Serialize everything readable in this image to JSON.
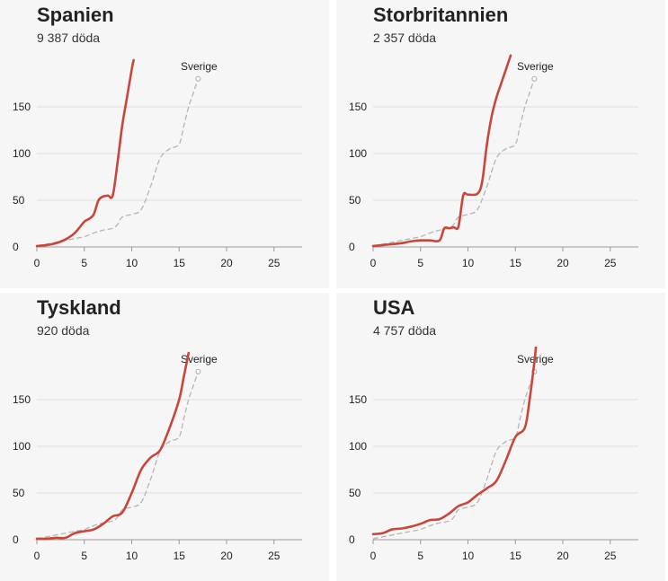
{
  "colors": {
    "main": "#c8473a",
    "reference": "#b5b5b5",
    "grid": "#dddddd",
    "axis": "#999999"
  },
  "panels": [
    {
      "title": "Spanien",
      "subtitle": "9 387 döda",
      "chart_data": {
        "type": "line",
        "xlim": [
          0,
          27
        ],
        "ylim": [
          0,
          200
        ],
        "xticks": [
          0,
          5,
          10,
          15,
          20,
          25
        ],
        "yticks": [
          0,
          50,
          100,
          150
        ],
        "reference_label": "Sverige",
        "series": [
          {
            "role": "main",
            "x": [
              0,
              1,
              2,
              3,
              4,
              5,
              5.5,
              6,
              6.5,
              7,
              7.5,
              8,
              8.5,
              9,
              9.5,
              10,
              10.2
            ],
            "y": [
              1,
              2,
              4,
              8,
              15,
              27,
              30,
              35,
              50,
              54,
              55,
              55,
              90,
              130,
              160,
              190,
              200
            ]
          },
          {
            "role": "reference",
            "name": "Sverige",
            "x": [
              0,
              1,
              2,
              3,
              4,
              5,
              6,
              7,
              8,
              8.5,
              9,
              10,
              11,
              12,
              13,
              14,
              15,
              15.5,
              16,
              16.5,
              17
            ],
            "y": [
              1,
              3,
              5,
              7,
              9,
              11,
              15,
              18,
              20,
              24,
              32,
              35,
              40,
              65,
              95,
              105,
              110,
              130,
              150,
              165,
              180
            ]
          }
        ]
      }
    },
    {
      "title": "Storbritannien",
      "subtitle": "2 357 döda",
      "chart_data": {
        "type": "line",
        "xlim": [
          0,
          27
        ],
        "ylim": [
          0,
          200
        ],
        "xticks": [
          0,
          5,
          10,
          15,
          20,
          25
        ],
        "yticks": [
          0,
          50,
          100,
          150
        ],
        "reference_label": "Sverige",
        "series": [
          {
            "role": "main",
            "x": [
              0,
              1,
              2,
              3,
              4,
              5,
              6,
              7,
              7.5,
              8,
              8.5,
              9,
              9.5,
              10,
              11,
              11.5,
              12,
              12.5,
              13,
              13.5,
              14,
              14.5
            ],
            "y": [
              1,
              2,
              3,
              4,
              6,
              7,
              7,
              7,
              20,
              20,
              21,
              22,
              55,
              56,
              57,
              70,
              110,
              140,
              160,
              175,
              190,
              205
            ]
          },
          {
            "role": "reference",
            "name": "Sverige",
            "x": [
              0,
              1,
              2,
              3,
              4,
              5,
              6,
              7,
              8,
              8.5,
              9,
              10,
              11,
              12,
              13,
              14,
              15,
              15.5,
              16,
              16.5,
              17
            ],
            "y": [
              1,
              3,
              5,
              7,
              9,
              11,
              15,
              18,
              20,
              24,
              32,
              35,
              40,
              65,
              95,
              105,
              110,
              130,
              150,
              165,
              180
            ]
          }
        ]
      }
    },
    {
      "title": "Tyskland",
      "subtitle": "920 döda",
      "chart_data": {
        "type": "line",
        "xlim": [
          0,
          27
        ],
        "ylim": [
          0,
          200
        ],
        "xticks": [
          0,
          5,
          10,
          15,
          20,
          25
        ],
        "yticks": [
          0,
          50,
          100,
          150
        ],
        "reference_label": "Sverige",
        "series": [
          {
            "role": "main",
            "x": [
              0,
              1,
              2,
              3,
              4,
              5,
              6,
              7,
              8,
              9,
              10,
              11,
              12,
              13,
              14,
              15,
              15.5,
              16
            ],
            "y": [
              1,
              1,
              2,
              2,
              7,
              9,
              11,
              17,
              25,
              29,
              50,
              75,
              88,
              96,
              120,
              150,
              175,
              200
            ]
          },
          {
            "role": "reference",
            "name": "Sverige",
            "x": [
              0,
              1,
              2,
              3,
              4,
              5,
              6,
              7,
              8,
              8.5,
              9,
              10,
              11,
              12,
              13,
              14,
              15,
              15.5,
              16,
              16.5,
              17
            ],
            "y": [
              1,
              3,
              5,
              7,
              9,
              11,
              15,
              18,
              20,
              24,
              32,
              35,
              40,
              65,
              95,
              105,
              110,
              130,
              150,
              165,
              180
            ]
          }
        ]
      }
    },
    {
      "title": "USA",
      "subtitle": "4 757 döda",
      "chart_data": {
        "type": "line",
        "xlim": [
          0,
          27
        ],
        "ylim": [
          0,
          200
        ],
        "xticks": [
          0,
          5,
          10,
          15,
          20,
          25
        ],
        "yticks": [
          0,
          50,
          100,
          150
        ],
        "reference_label": "Sverige",
        "series": [
          {
            "role": "main",
            "x": [
              0,
              1,
              2,
              3,
              4,
              5,
              6,
              7,
              8,
              9,
              10,
              11,
              12,
              13,
              14,
              15,
              16,
              16.5,
              17,
              17.2
            ],
            "y": [
              6,
              7,
              11,
              12,
              14,
              17,
              21,
              22,
              28,
              36,
              40,
              48,
              55,
              63,
              85,
              110,
              120,
              150,
              190,
              210
            ]
          },
          {
            "role": "reference",
            "name": "Sverige",
            "x": [
              0,
              1,
              2,
              3,
              4,
              5,
              6,
              7,
              8,
              8.5,
              9,
              10,
              11,
              12,
              13,
              14,
              15,
              15.5,
              16,
              16.5,
              17
            ],
            "y": [
              1,
              3,
              5,
              7,
              9,
              11,
              15,
              18,
              20,
              24,
              32,
              35,
              40,
              65,
              95,
              105,
              110,
              130,
              150,
              165,
              180
            ]
          }
        ]
      }
    }
  ]
}
